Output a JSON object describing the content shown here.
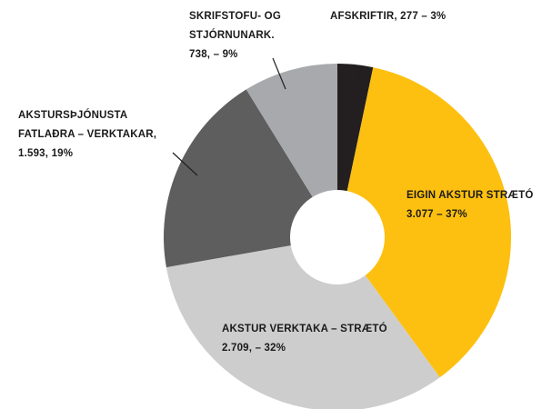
{
  "chart_data": {
    "type": "donut",
    "categories": [
      "AFSKRIFTIR,",
      "EIGIN AKSTUR STRÆTÓ",
      "AKSTUR VERKTAKA – STRÆTÓ",
      "AKSTURSÞJÓNUSTA FATLAÐRA – VERKTAKAR,",
      "SKRIFSTOFU- OG STJÓRNUNARK."
    ],
    "values": [
      277,
      3077,
      2709,
      1593,
      738
    ],
    "value_labels": [
      "277 – 3%",
      "3.077 – 37%",
      "2.709, – 32%",
      "1.593, 19%",
      "738, – 9%"
    ],
    "colors": [
      "#231f20",
      "#fdc010",
      "#cdcdcd",
      "#5e5e5e",
      "#a7a9ac"
    ]
  }
}
